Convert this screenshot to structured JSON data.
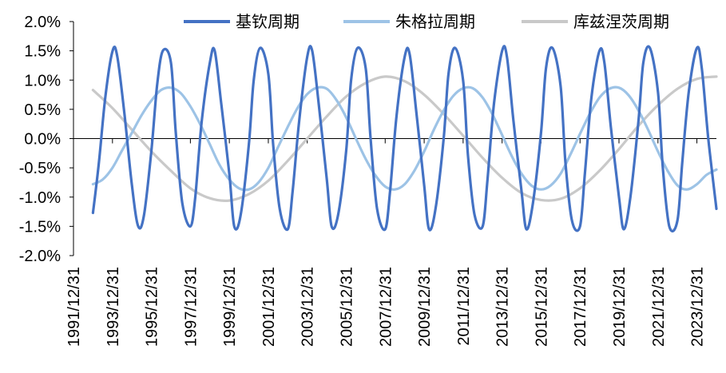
{
  "chart_data": {
    "type": "line",
    "title": "",
    "xlabel": "",
    "ylabel": "",
    "ylim": [
      -2.0,
      2.0
    ],
    "y_ticks": [
      "2.0%",
      "1.5%",
      "1.0%",
      "0.5%",
      "0.0%",
      "-0.5%",
      "-1.0%",
      "-1.5%",
      "-2.0%"
    ],
    "y_tick_values": [
      2.0,
      1.5,
      1.0,
      0.5,
      0.0,
      -0.5,
      -1.0,
      -1.5,
      -2.0
    ],
    "x_range": [
      "1991-12-31",
      "2024-12-31"
    ],
    "x_ticks": [
      "1991/12/31",
      "1993/12/31",
      "1995/12/31",
      "1997/12/31",
      "1999/12/31",
      "2001/12/31",
      "2003/12/31",
      "2005/12/31",
      "2007/12/31",
      "2009/12/31",
      "2011/12/31",
      "2013/12/31",
      "2015/12/31",
      "2017/12/31",
      "2019/12/31",
      "2021/12/31",
      "2023/12/31"
    ],
    "legend_position": "top",
    "grid": false,
    "series": [
      {
        "name": "基钦周期",
        "color": "#4472C4",
        "x": [
          "1992-12-31",
          "1993-04-22",
          "1993-08-18",
          "1994-01-02",
          "1994-04-01",
          "1994-08-15",
          "1994-12-31",
          "1995-04-28",
          "1995-08-15",
          "1995-12-31",
          "1996-04-15",
          "1996-08-01",
          "1996-12-31",
          "1997-04-01",
          "1997-08-01",
          "1997-12-31",
          "1998-04-01",
          "1998-08-01",
          "1998-12-31",
          "1999-04-01",
          "1999-08-01",
          "1999-12-31",
          "2000-04-01",
          "2000-08-01",
          "2000-12-31",
          "2001-04-01",
          "2001-08-01",
          "2001-12-31",
          "2002-04-01",
          "2002-08-01",
          "2002-12-31",
          "2003-04-01",
          "2003-08-01",
          "2003-12-31",
          "2004-04-01",
          "2004-08-01",
          "2004-12-31",
          "2005-04-01",
          "2005-08-01",
          "2005-12-31",
          "2006-04-01",
          "2006-08-01",
          "2006-12-31",
          "2007-04-01",
          "2007-08-01",
          "2007-12-31",
          "2008-04-01",
          "2008-08-01",
          "2008-12-31",
          "2009-04-01",
          "2009-08-01",
          "2009-12-31",
          "2010-04-01",
          "2010-08-01",
          "2010-12-31",
          "2011-04-01",
          "2011-08-01",
          "2011-12-31",
          "2012-04-01",
          "2012-08-01",
          "2012-12-31",
          "2013-04-01",
          "2013-08-01",
          "2013-12-31",
          "2014-04-01",
          "2014-08-01",
          "2014-12-31",
          "2015-04-01",
          "2015-08-01",
          "2015-12-31",
          "2016-04-01",
          "2016-08-01",
          "2016-12-31",
          "2017-04-01",
          "2017-08-01",
          "2017-12-31",
          "2018-04-01",
          "2018-08-01",
          "2018-12-31",
          "2019-04-01",
          "2019-08-01",
          "2019-12-31",
          "2020-04-01",
          "2020-08-01",
          "2020-12-31",
          "2021-04-01",
          "2021-08-01",
          "2021-12-31",
          "2022-04-01",
          "2022-08-01",
          "2022-12-31",
          "2023-04-01",
          "2023-08-01",
          "2023-12-31",
          "2024-04-01",
          "2024-08-01",
          "2024-12-31"
        ],
        "values": [
          -1.27,
          -0.4,
          0.7,
          1.5,
          1.4,
          0.4,
          -0.8,
          -1.5,
          -1.3,
          -0.2,
          0.9,
          1.5,
          1.3,
          0.1,
          -1.1,
          -1.5,
          -1.0,
          0.3,
          1.3,
          1.5,
          0.6,
          -0.6,
          -1.5,
          -1.3,
          -0.1,
          1.0,
          1.55,
          1.1,
          -0.1,
          -1.2,
          -1.55,
          -0.9,
          0.3,
          1.4,
          1.5,
          0.6,
          -0.7,
          -1.5,
          -1.3,
          -0.2,
          1.0,
          1.55,
          1.2,
          0.0,
          -1.2,
          -1.55,
          -0.9,
          0.4,
          1.4,
          1.45,
          0.5,
          -0.8,
          -1.55,
          -1.2,
          0.0,
          1.1,
          1.55,
          1.0,
          -0.3,
          -1.3,
          -1.5,
          -0.7,
          0.6,
          1.5,
          1.4,
          0.3,
          -0.9,
          -1.55,
          -1.1,
          0.1,
          1.2,
          1.55,
          0.9,
          -0.4,
          -1.4,
          -1.5,
          -0.6,
          0.7,
          1.5,
          1.3,
          0.2,
          -1.0,
          -1.55,
          -1.0,
          0.3,
          1.3,
          1.55,
          0.8,
          -0.5,
          -1.5,
          -1.4,
          -0.4,
          0.8,
          1.55,
          1.2,
          0.0,
          -1.2
        ]
      },
      {
        "name": "朱格拉周期",
        "color": "#9DC3E6",
        "x": [
          "1992-12-31",
          "1993-06-30",
          "1993-12-31",
          "1994-06-30",
          "1994-12-31",
          "1995-06-30",
          "1995-12-31",
          "1996-06-30",
          "1996-12-31",
          "1997-06-30",
          "1997-12-31",
          "1998-06-30",
          "1998-12-31",
          "1999-06-30",
          "1999-12-31",
          "2000-06-30",
          "2000-12-31",
          "2001-06-30",
          "2001-12-31",
          "2002-06-30",
          "2002-12-31",
          "2003-06-30",
          "2003-12-31",
          "2004-06-30",
          "2004-12-31",
          "2005-06-30",
          "2005-12-31",
          "2006-06-30",
          "2006-12-31",
          "2007-06-30",
          "2007-12-31",
          "2008-06-30",
          "2008-12-31",
          "2009-06-30",
          "2009-12-31",
          "2010-06-30",
          "2010-12-31",
          "2011-06-30",
          "2011-12-31",
          "2012-06-30",
          "2012-12-31",
          "2013-06-30",
          "2013-12-31",
          "2014-06-30",
          "2014-12-31",
          "2015-06-30",
          "2015-12-31",
          "2016-06-30",
          "2016-12-31",
          "2017-06-30",
          "2017-12-31",
          "2018-06-30",
          "2018-12-31",
          "2019-06-30",
          "2019-12-31",
          "2020-06-30",
          "2020-12-31",
          "2021-06-30",
          "2021-12-31",
          "2022-06-30",
          "2022-12-31",
          "2023-06-30",
          "2023-12-31",
          "2024-06-30",
          "2024-12-31"
        ],
        "values": [
          -0.78,
          -0.7,
          -0.5,
          -0.2,
          0.1,
          0.4,
          0.65,
          0.83,
          0.87,
          0.78,
          0.55,
          0.25,
          -0.1,
          -0.45,
          -0.7,
          -0.85,
          -0.87,
          -0.75,
          -0.5,
          -0.15,
          0.2,
          0.52,
          0.76,
          0.87,
          0.85,
          0.66,
          0.36,
          0.0,
          -0.35,
          -0.63,
          -0.82,
          -0.87,
          -0.78,
          -0.55,
          -0.22,
          0.15,
          0.48,
          0.73,
          0.86,
          0.86,
          0.7,
          0.42,
          0.06,
          -0.3,
          -0.6,
          -0.8,
          -0.87,
          -0.8,
          -0.6,
          -0.28,
          0.08,
          0.42,
          0.7,
          0.85,
          0.87,
          0.74,
          0.48,
          0.15,
          -0.22,
          -0.55,
          -0.8,
          -0.87,
          -0.78,
          -0.62,
          -0.53
        ]
      },
      {
        "name": "库兹涅茨周期",
        "color": "#C9C9C9",
        "x": [
          "1992-12-31",
          "1993-12-31",
          "1994-12-31",
          "1995-12-31",
          "1996-12-31",
          "1997-12-31",
          "1998-12-31",
          "1999-12-31",
          "2000-12-31",
          "2001-12-31",
          "2002-12-31",
          "2003-12-31",
          "2004-12-31",
          "2005-12-31",
          "2006-12-31",
          "2007-12-31",
          "2008-12-31",
          "2009-12-31",
          "2010-12-31",
          "2011-12-31",
          "2012-12-31",
          "2013-12-31",
          "2014-12-31",
          "2015-12-31",
          "2016-12-31",
          "2017-12-31",
          "2018-12-31",
          "2019-12-31",
          "2020-12-31",
          "2021-12-31",
          "2022-12-31",
          "2023-12-31",
          "2024-12-31"
        ],
        "values": [
          0.83,
          0.52,
          0.15,
          -0.22,
          -0.55,
          -0.85,
          -1.02,
          -1.06,
          -0.95,
          -0.72,
          -0.38,
          0.0,
          0.38,
          0.72,
          0.95,
          1.06,
          0.98,
          0.75,
          0.42,
          0.05,
          -0.33,
          -0.67,
          -0.93,
          -1.05,
          -1.03,
          -0.85,
          -0.55,
          -0.18,
          0.22,
          0.57,
          0.85,
          1.02,
          1.06
        ]
      }
    ]
  }
}
